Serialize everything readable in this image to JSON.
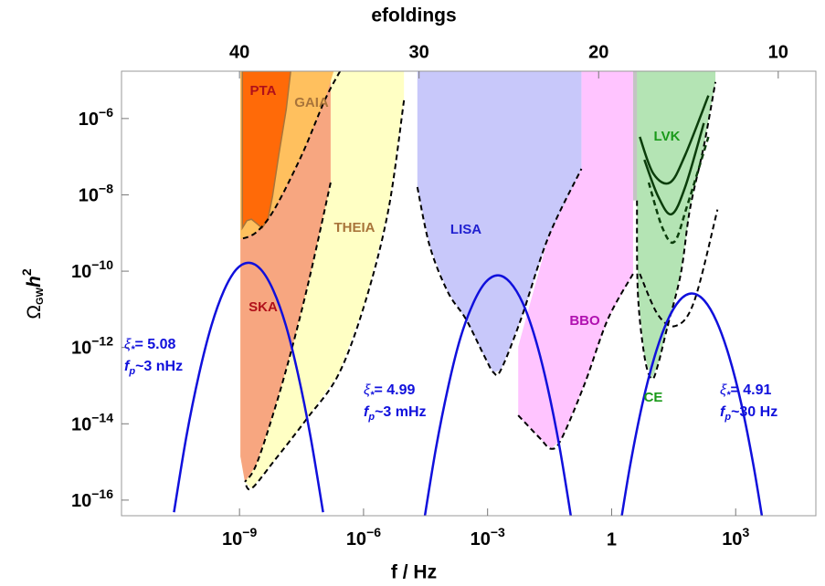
{
  "chart_data": {
    "type": "line",
    "x2label": "efoldings",
    "xlabel": "f / Hz",
    "ylabel": {
      "symbol": "Ω",
      "sub": "GW",
      "main": "h",
      "sup": "2"
    },
    "xscale": "log",
    "yscale": "log",
    "xlim": [
      1.4e-12,
      87000.0
    ],
    "ylim": [
      3.9e-17,
      1.74e-05
    ],
    "xticks": [
      {
        "value": 1e-09,
        "label": {
          "base": "10",
          "exp": "−9"
        }
      },
      {
        "value": 1e-06,
        "label": {
          "base": "10",
          "exp": "−6"
        }
      },
      {
        "value": 0.001,
        "label": {
          "base": "10",
          "exp": "−3"
        }
      },
      1,
      {
        "value": 1000,
        "label": {
          "base": "10",
          "exp": "3"
        }
      }
    ],
    "yticks": [
      {
        "value": 1e-06,
        "label": {
          "base": "10",
          "exp": "−6"
        }
      },
      {
        "value": 1e-08,
        "label": {
          "base": "10",
          "exp": "−8"
        }
      },
      {
        "value": 1e-10,
        "label": {
          "base": "10",
          "exp": "−10"
        }
      },
      {
        "value": 1e-12,
        "label": {
          "base": "10",
          "exp": "−12"
        }
      },
      {
        "value": 1e-14,
        "label": {
          "base": "10",
          "exp": "−14"
        }
      },
      {
        "value": 1e-16,
        "label": {
          "base": "10",
          "exp": "−16"
        }
      }
    ],
    "x2ticks": [
      {
        "value": 1e-09,
        "label": "40"
      },
      {
        "value": 2.2e-05,
        "label": "30"
      },
      {
        "value": 0.485,
        "label": "20"
      },
      {
        "value": 10700.0,
        "label": "10"
      }
    ],
    "regions": [
      {
        "name": "THEIA",
        "color": "#ffffc4",
        "label_color": "#a8743a",
        "x": [
          1.05e-09,
          9.5e-06,
          9.5e-06,
          4e-06,
          1.12e-06,
          2.5e-07,
          4.1e-08,
          6.9e-09,
          1.94e-09,
          1.35e-09,
          1.05e-09
        ],
        "y": [
          1.74e-05,
          1.74e-05,
          3e-06,
          4.1e-09,
          1.66e-11,
          2e-13,
          1.29e-14,
          1.07e-15,
          2e-16,
          3e-16,
          1.4e-15
        ]
      },
      {
        "name": "SKA",
        "color": "#f7a680",
        "label_color": "#b0101a",
        "x": [
          1.05e-09,
          1.6e-07,
          1.6e-07,
          5.2e-08,
          1.9e-08,
          6.9e-09,
          2.5e-09,
          1.35e-09,
          1.05e-09
        ],
        "y": [
          1.74e-05,
          1.74e-05,
          2.1e-08,
          8.5e-11,
          1.05e-12,
          2.2e-14,
          8.1e-16,
          3e-16,
          1.4e-15
        ]
      },
      {
        "name": "GAIA",
        "color": "#ffc05e",
        "label_color": "#a8743a",
        "x": [
          1.05e-09,
          1.9e-07,
          1.15e-07,
          3.2e-08,
          6.9e-09,
          2.5e-09,
          1.05e-09
        ],
        "y": [
          1.74e-05,
          1.74e-05,
          3e-06,
          1.1e-07,
          4.1e-09,
          1.03e-09,
          6.9e-10
        ]
      },
      {
        "name": "PTA",
        "color": "#ff6a08",
        "label_color": "#b0101a",
        "edge": "#a8743a",
        "x": [
          1.17e-09,
          1.73e-08,
          1.35e-08,
          8.9e-09,
          6.3e-09,
          4.9e-09,
          3.5e-09,
          2.6e-09,
          1.94e-09,
          1.5e-09,
          1.17e-09
        ],
        "y": [
          1.74e-05,
          1.74e-05,
          1.74e-06,
          1.1e-07,
          9.3e-09,
          2.3e-09,
          1.35e-09,
          1.78e-09,
          2.3e-09,
          2.1e-09,
          1.35e-09
        ]
      },
      {
        "name": "BBO",
        "color": "#ffc4ff",
        "label_color": "#b010b0",
        "x": [
          0.186,
          3.3,
          3.3,
          0.81,
          0.225,
          0.063,
          0.035,
          0.018,
          0.0055,
          0.0055,
          0.0295,
          0.186
        ],
        "y": [
          1.74e-05,
          1.74e-05,
          8.5e-11,
          5.5e-12,
          1.15e-13,
          4.3e-15,
          2.2e-15,
          4.3e-15,
          1.66e-14,
          1.05e-12,
          7.8e-10,
          4.8e-08
        ]
      },
      {
        "name": "LISA",
        "color": "#c8c8fa",
        "label_color": "#2020d0",
        "x": [
          2e-05,
          0.186,
          0.186,
          0.0295,
          0.0064,
          0.0021,
          0.0014,
          0.00083,
          0.0003,
          0.00011,
          4e-05,
          2e-05
        ],
        "y": [
          1.74e-05,
          1.74e-05,
          4.8e-08,
          7.8e-10,
          5.5e-12,
          2.6e-13,
          2.2e-13,
          6e-13,
          5.5e-12,
          2.8e-11,
          4.5e-10,
          1.6e-08
        ]
      },
      {
        "color": "#c4c4c4",
        "x": [
          3.3,
          4.8,
          4.8,
          3.3
        ],
        "y": [
          1.74e-05,
          1.74e-05,
          7.1e-09,
          7.1e-09
        ]
      },
      {
        "name": "CE",
        "color": "#b4e4b4",
        "label_color": "#1a9a1a",
        "x": [
          4.1,
          324,
          324,
          170,
          78,
          47,
          21.9,
          13.2,
          9.3,
          6.2,
          4.3,
          4.1
        ],
        "y": [
          1.74e-05,
          1.74e-05,
          9.1e-06,
          1.9e-07,
          4.1e-09,
          8.5e-11,
          3.2e-12,
          3.5e-13,
          1.5e-13,
          6e-13,
          2.8e-11,
          7.1e-09
        ]
      }
    ],
    "boundaries": [
      {
        "color": "#000000",
        "x": [
          9.5e-06,
          4e-06,
          1.12e-06,
          2.5e-07,
          4.1e-08,
          6.9e-09,
          1.94e-09,
          1.35e-09
        ],
        "y": [
          3e-06,
          4.1e-09,
          1.66e-11,
          2e-13,
          1.29e-14,
          1.07e-15,
          2e-16,
          3e-16
        ]
      },
      {
        "color": "#000000",
        "x": [
          1.6e-07,
          5.2e-08,
          1.9e-08,
          6.9e-09,
          2.5e-09,
          1.35e-09
        ],
        "y": [
          2.1e-08,
          8.5e-11,
          1.05e-12,
          2.2e-14,
          8.1e-16,
          3e-16
        ]
      },
      {
        "color": "#000000",
        "x": [
          2.7e-07,
          1.15e-07,
          3.2e-08,
          6.9e-09,
          2.5e-09,
          1.05e-09
        ],
        "y": [
          1.74e-05,
          3e-06,
          1.1e-07,
          4.1e-09,
          1.03e-09,
          6.9e-10
        ]
      },
      {
        "color": "#000000",
        "x": [
          2e-05,
          4e-05,
          0.00011,
          0.0003,
          0.00083,
          0.0014,
          0.0021,
          0.0064,
          0.0295,
          0.186
        ],
        "y": [
          1.6e-08,
          4.5e-10,
          2.8e-11,
          5.5e-12,
          6e-13,
          2.2e-13,
          2.6e-13,
          5.5e-12,
          7.8e-10,
          4.8e-08
        ]
      },
      {
        "color": "#000000",
        "x": [
          0.0055,
          0.018,
          0.035,
          0.063,
          0.225,
          0.81,
          3.3
        ],
        "y": [
          1.66e-14,
          4.3e-15,
          2.2e-15,
          4.3e-15,
          1.15e-13,
          5.5e-12,
          8.5e-11
        ]
      },
      {
        "color": "#000000",
        "x": [
          4.1,
          4.3,
          6.2,
          9.3,
          13.2,
          21.9,
          47,
          78,
          170,
          324
        ],
        "y": [
          7.1e-09,
          2.8e-11,
          6e-13,
          1.5e-13,
          3.5e-13,
          3.2e-12,
          8.5e-11,
          4.1e-09,
          1.9e-07,
          9.1e-06
        ]
      },
      {
        "color": "#000000",
        "x": [
          4.8,
          13.2,
          36,
          100,
          363
        ],
        "y": [
          8.5e-11,
          7.2e-12,
          3.7e-12,
          1.66e-11,
          4.1e-09
        ]
      }
    ],
    "series": [
      {
        "color": "#1010dc",
        "x": [
          2.6e-11,
          5.2e-11,
          1.05e-10,
          2.1e-10,
          4.2e-10,
          8.3e-10,
          1.66e-09,
          3.3e-09,
          6.6e-09,
          1.32e-08,
          2.6e-08,
          5.2e-08,
          1.05e-07
        ],
        "y": [
          4.8e-17,
          4.7e-15,
          2e-13,
          3.8e-12,
          3.1e-11,
          1.1e-10,
          1.66e-10,
          1.1e-10,
          3.1e-11,
          3.8e-12,
          2e-13,
          4.7e-15,
          4.8e-17
        ]
      },
      {
        "color": "#1010dc",
        "x": [
          2.8e-05,
          5.6e-05,
          0.000112,
          0.00022,
          0.00045,
          0.00089,
          0.00178,
          0.0035,
          0.0071,
          0.0141,
          0.028,
          0.056,
          0.112
        ],
        "y": [
          2.2e-17,
          2.2e-15,
          9.5e-14,
          1.78e-12,
          1.45e-11,
          5.1e-11,
          7.8e-11,
          5.1e-11,
          1.45e-11,
          1.78e-12,
          9.5e-14,
          2.2e-15,
          2.2e-17
        ]
      },
      {
        "color": "#1010dc",
        "x": [
          1.38,
          2.75,
          5.5,
          11,
          21.9,
          43.7,
          87,
          174,
          347,
          692,
          1380,
          2750,
          5500
        ],
        "y": [
          7.4e-18,
          7.2e-16,
          3.2e-14,
          5.9e-13,
          4.8e-12,
          1.7e-11,
          2.6e-11,
          1.7e-11,
          4.8e-12,
          5.9e-13,
          3.2e-14,
          7.2e-16,
          7.4e-18
        ]
      },
      {
        "name": "LVK",
        "color": "#0b3d0b",
        "label_color": "#1a9a1a",
        "x": [
          6.2,
          13.2,
          28,
          60,
          170
        ],
        "y": [
          8.3e-08,
          9.3e-09,
          3.1e-09,
          1.6e-08,
          7.6e-07
        ]
      },
      {
        "color": "#0b3d0b",
        "x": [
          4.8,
          10.2,
          25.7,
          60,
          219
        ],
        "y": [
          3.3e-07,
          3.6e-08,
          2.1e-08,
          1.1e-07,
          4e-06
        ]
      },
      {
        "color": "#0b3d0b",
        "dash": true,
        "x": [
          7.9,
          17,
          33,
          68,
          219
        ],
        "y": [
          2.1e-08,
          1.35e-09,
          5.9e-10,
          5.4e-09,
          3.3e-07
        ]
      }
    ],
    "annotations": [
      {
        "color": "#1010dc",
        "lines": [
          [
            "ξ",
            "*",
            "= 5.08"
          ],
          [
            "f",
            "p",
            "~3 nHz"
          ]
        ]
      },
      {
        "color": "#1010dc",
        "lines": [
          [
            "ξ",
            "*",
            "= 4.99"
          ],
          [
            "f",
            "p",
            "~3 mHz"
          ]
        ]
      },
      {
        "color": "#1010dc",
        "lines": [
          [
            "ξ",
            "*",
            "= 4.91"
          ],
          [
            "f",
            "p",
            "~30 Hz"
          ]
        ]
      }
    ]
  }
}
